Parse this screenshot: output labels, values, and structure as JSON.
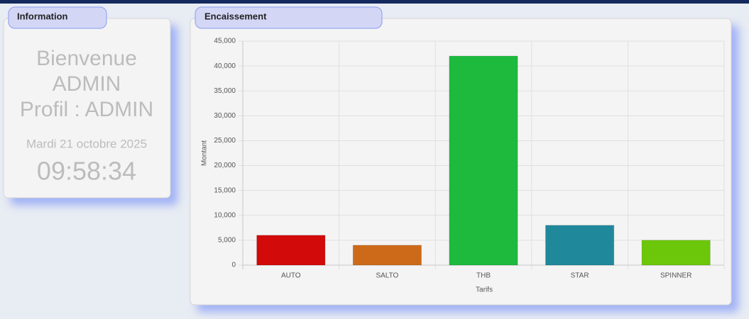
{
  "info": {
    "title": "Information",
    "lines": [
      "Bienvenue",
      "ADMIN",
      "Profil : ADMIN"
    ],
    "date": "Mardi 21 octobre 2025",
    "time": "09:58:34"
  },
  "chart_data": {
    "type": "bar",
    "title": "Encaissement",
    "xlabel": "Tarifs",
    "ylabel": "Montant",
    "categories": [
      "AUTO",
      "SALTO",
      "THB",
      "STAR",
      "SPINNER"
    ],
    "values": [
      6000,
      4000,
      42000,
      8000,
      5000
    ],
    "colors": [
      "#d20a0a",
      "#cc6a1a",
      "#1dba3e",
      "#1f889b",
      "#6cc70a"
    ],
    "ylim": [
      0,
      45000
    ],
    "yticks": [
      0,
      {
        "value": 5000,
        "label": "5,000"
      },
      {
        "value": 10000,
        "label": "10,000"
      },
      {
        "value": 15000,
        "label": "15,000"
      },
      {
        "value": 20000,
        "label": "20,000"
      },
      {
        "value": 25000,
        "label": "25,000"
      },
      {
        "value": 30000,
        "label": "30,000"
      },
      {
        "value": 35000,
        "label": "35,000"
      },
      {
        "value": 40000,
        "label": "40,000"
      },
      {
        "value": 45000,
        "label": "45,000"
      }
    ],
    "grid": true
  }
}
